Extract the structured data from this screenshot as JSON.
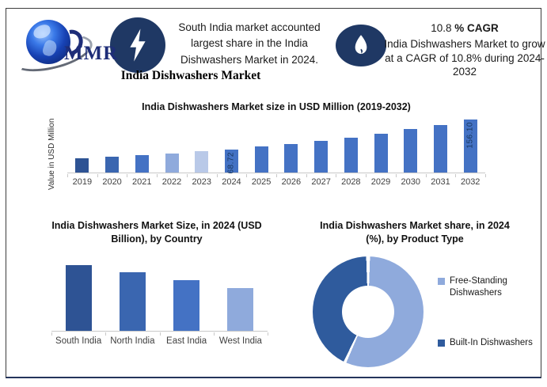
{
  "colors": {
    "icon_navy": "#1F3864",
    "accent_blue": "#4472C4",
    "dark_bar": "#2E5394",
    "mid_bar": "#3A66B0",
    "light_bar": "#8FAADC",
    "lighter_bar": "#B9C9E8",
    "donut_dark": "#2F5B9D",
    "axis_gray": "#C9C9C9"
  },
  "header": {
    "logo_text": "MMR",
    "left_note": "South India market accounted largest share in the India Dishwashers Market in 2024.",
    "cagr_value": "10.8 ",
    "cagr_unit": "% CAGR",
    "right_note": "India Dishwashers Market to grow at a CAGR of 10.8% during 2024-2032",
    "report_title": "India Dishwashers Market"
  },
  "chart_data": [
    {
      "type": "bar",
      "title": "India Dishwashers Market size in USD Million (2019-2032)",
      "xlabel": "",
      "ylabel": "Value in USD Million",
      "categories": [
        "2019",
        "2020",
        "2021",
        "2022",
        "2023",
        "2024",
        "2025",
        "2026",
        "2027",
        "2028",
        "2029",
        "2030",
        "2031",
        "2032"
      ],
      "values": [
        41.2,
        45.7,
        50.6,
        56.0,
        62.0,
        68.72,
        76.1,
        84.4,
        93.5,
        103.6,
        114.7,
        127.1,
        140.9,
        156.1
      ],
      "data_labels": {
        "2024": "68.72",
        "2032": "156.10"
      },
      "bar_colors": [
        "#2E5394",
        "#3A66B0",
        "#4472C4",
        "#8FAADC",
        "#B9C9E8",
        "#4472C4",
        "#4472C4",
        "#4472C4",
        "#4472C4",
        "#4472C4",
        "#4472C4",
        "#4472C4",
        "#4472C4",
        "#4472C4"
      ],
      "note": "Only 2024 (68.72) and 2032 (156.10) carry data labels; other values estimated from bar heights / 10.8% CAGR.",
      "grid": false,
      "legend": false
    },
    {
      "type": "bar",
      "title": "India Dishwashers Market Size, in 2024 (USD Billion), by Country",
      "xlabel": "",
      "ylabel": "",
      "categories": [
        "South India",
        "North India",
        "East India",
        "West India"
      ],
      "values": [
        1.0,
        0.89,
        0.77,
        0.65
      ],
      "data_labels": {},
      "bar_colors": [
        "#2E5394",
        "#3A66B0",
        "#4472C4",
        "#8FAADC"
      ],
      "note": "No numeric labels shown; values are relative bar heights (South India largest).",
      "grid": false,
      "legend": false
    },
    {
      "type": "pie",
      "subtype": "donut",
      "title": "India Dishwashers Market share, in 2024 (%), by Product Type",
      "slices": [
        {
          "label": "Free-Standing Dishwashers",
          "value": 57,
          "color": "#8FAADC"
        },
        {
          "label": "Built-In Dishwashers",
          "value": 43,
          "color": "#2F5B9D"
        }
      ],
      "note": "Percentages not labeled; estimated from arc angles.",
      "legend_position": "right"
    }
  ]
}
